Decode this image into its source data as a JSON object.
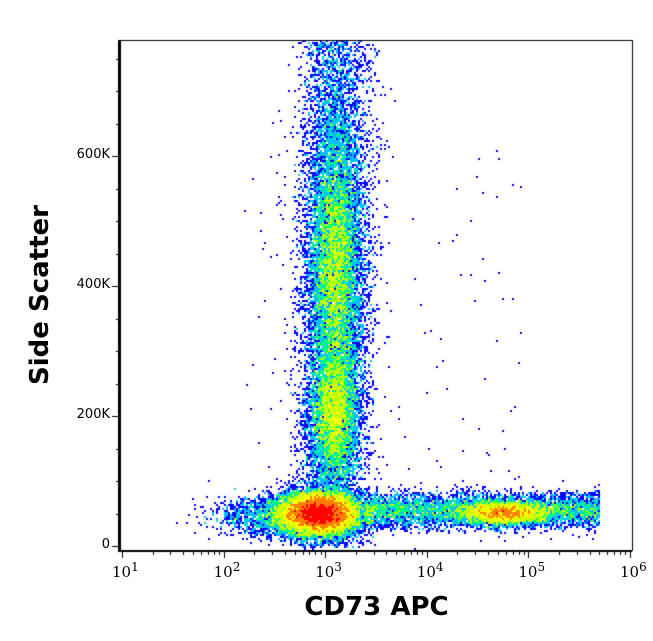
{
  "chart_data": {
    "type": "scatter",
    "subtype": "density-dot-plot",
    "xlabel": "CD73 APC",
    "ylabel": "Side Scatter",
    "xscale": "log",
    "xlim": [
      10,
      1000000
    ],
    "ylim": [
      -5000,
      780000
    ],
    "x_ticks": [
      {
        "base": "10",
        "exp": "1"
      },
      {
        "base": "10",
        "exp": "2"
      },
      {
        "base": "10",
        "exp": "3"
      },
      {
        "base": "10",
        "exp": "4"
      },
      {
        "base": "10",
        "exp": "5"
      },
      {
        "base": "10",
        "exp": "6"
      }
    ],
    "y_ticks": [
      {
        "value": 0,
        "label": "0"
      },
      {
        "value": 200000,
        "label": "200K"
      },
      {
        "value": 400000,
        "label": "400K"
      },
      {
        "value": 600000,
        "label": "600K"
      }
    ],
    "colormap": [
      "#0000ff",
      "#00c0ff",
      "#00ff80",
      "#c0ff00",
      "#ffff00",
      "#ff8000",
      "#ff0000"
    ],
    "populations": [
      {
        "x_center": 1000,
        "y_center": 50000,
        "density": "highest"
      },
      {
        "x_center": 1300,
        "y_range": [
          100000,
          780000
        ],
        "peaks_y": [
          200000,
          450000
        ],
        "density": "high"
      },
      {
        "x_range": [
          3000,
          400000
        ],
        "x_peak": 60000,
        "y_center": 50000,
        "density": "medium"
      }
    ],
    "grid": false
  }
}
